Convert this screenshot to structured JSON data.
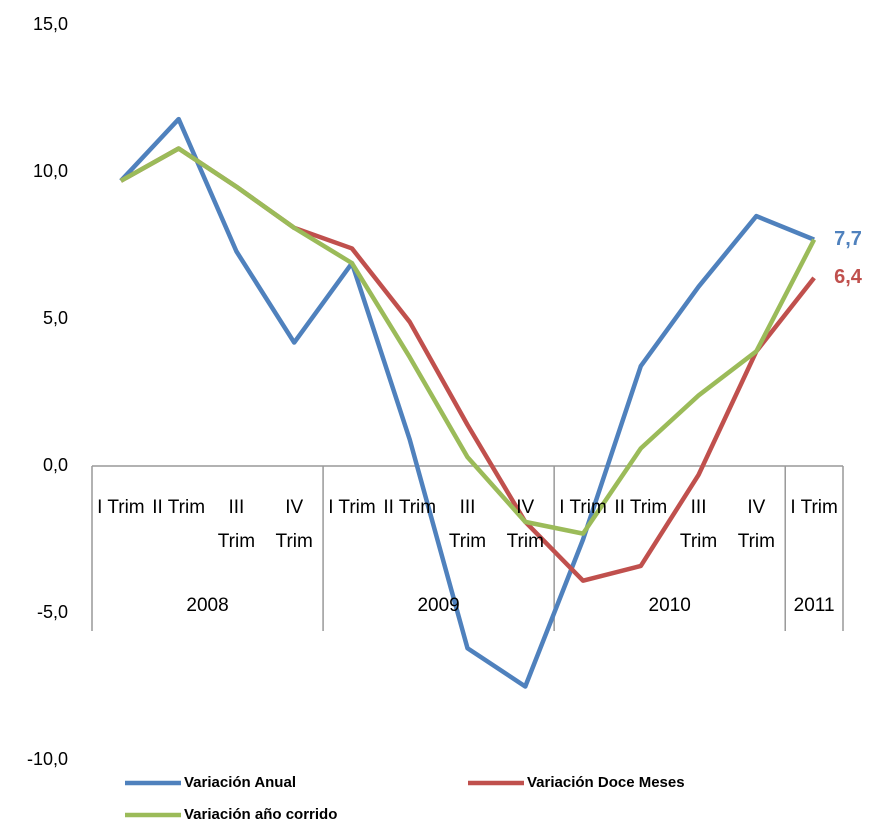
{
  "chart_data": {
    "type": "line",
    "categories": [
      "I Trim",
      "II Trim",
      "III Trim",
      "IV Trim",
      "I Trim",
      "II Trim",
      "III Trim",
      "IV Trim",
      "I Trim",
      "II Trim",
      "III Trim",
      "IV Trim",
      "I Trim"
    ],
    "groups": [
      {
        "label": "2008",
        "count": 4
      },
      {
        "label": "2009",
        "count": 4
      },
      {
        "label": "2010",
        "count": 4
      },
      {
        "label": "2011",
        "count": 1
      }
    ],
    "series": [
      {
        "name": "Variación Anual",
        "color": "#4f81bd",
        "values": [
          9.7,
          11.8,
          7.3,
          4.2,
          6.9,
          0.9,
          -6.2,
          -7.5,
          -2.5,
          3.4,
          6.1,
          8.5,
          7.7
        ],
        "value_labels": [
          null,
          null,
          null,
          null,
          null,
          null,
          null,
          null,
          null,
          null,
          null,
          null,
          "7,7"
        ]
      },
      {
        "name": "Variación Doce Meses",
        "color": "#c0504d",
        "values": [
          9.7,
          10.8,
          9.5,
          8.1,
          7.4,
          4.9,
          1.4,
          -1.9,
          -3.9,
          -3.4,
          -0.3,
          3.9,
          6.4
        ],
        "value_labels": [
          null,
          null,
          null,
          null,
          null,
          null,
          null,
          null,
          null,
          null,
          null,
          null,
          "6,4"
        ]
      },
      {
        "name": "Variación año corrido",
        "color": "#9bbb59",
        "values": [
          9.7,
          10.8,
          9.5,
          8.1,
          6.9,
          3.7,
          0.3,
          -1.9,
          -2.3,
          0.6,
          2.4,
          3.9,
          7.7
        ]
      }
    ],
    "ylim": [
      -10,
      15
    ],
    "yticks": [
      {
        "value": -10,
        "label": "-10,0"
      },
      {
        "value": -5,
        "label": "-5,0"
      },
      {
        "value": 0,
        "label": "0,0"
      },
      {
        "value": 5,
        "label": "5,0"
      },
      {
        "value": 10,
        "label": "10,0"
      },
      {
        "value": 15,
        "label": "15,0"
      }
    ]
  }
}
